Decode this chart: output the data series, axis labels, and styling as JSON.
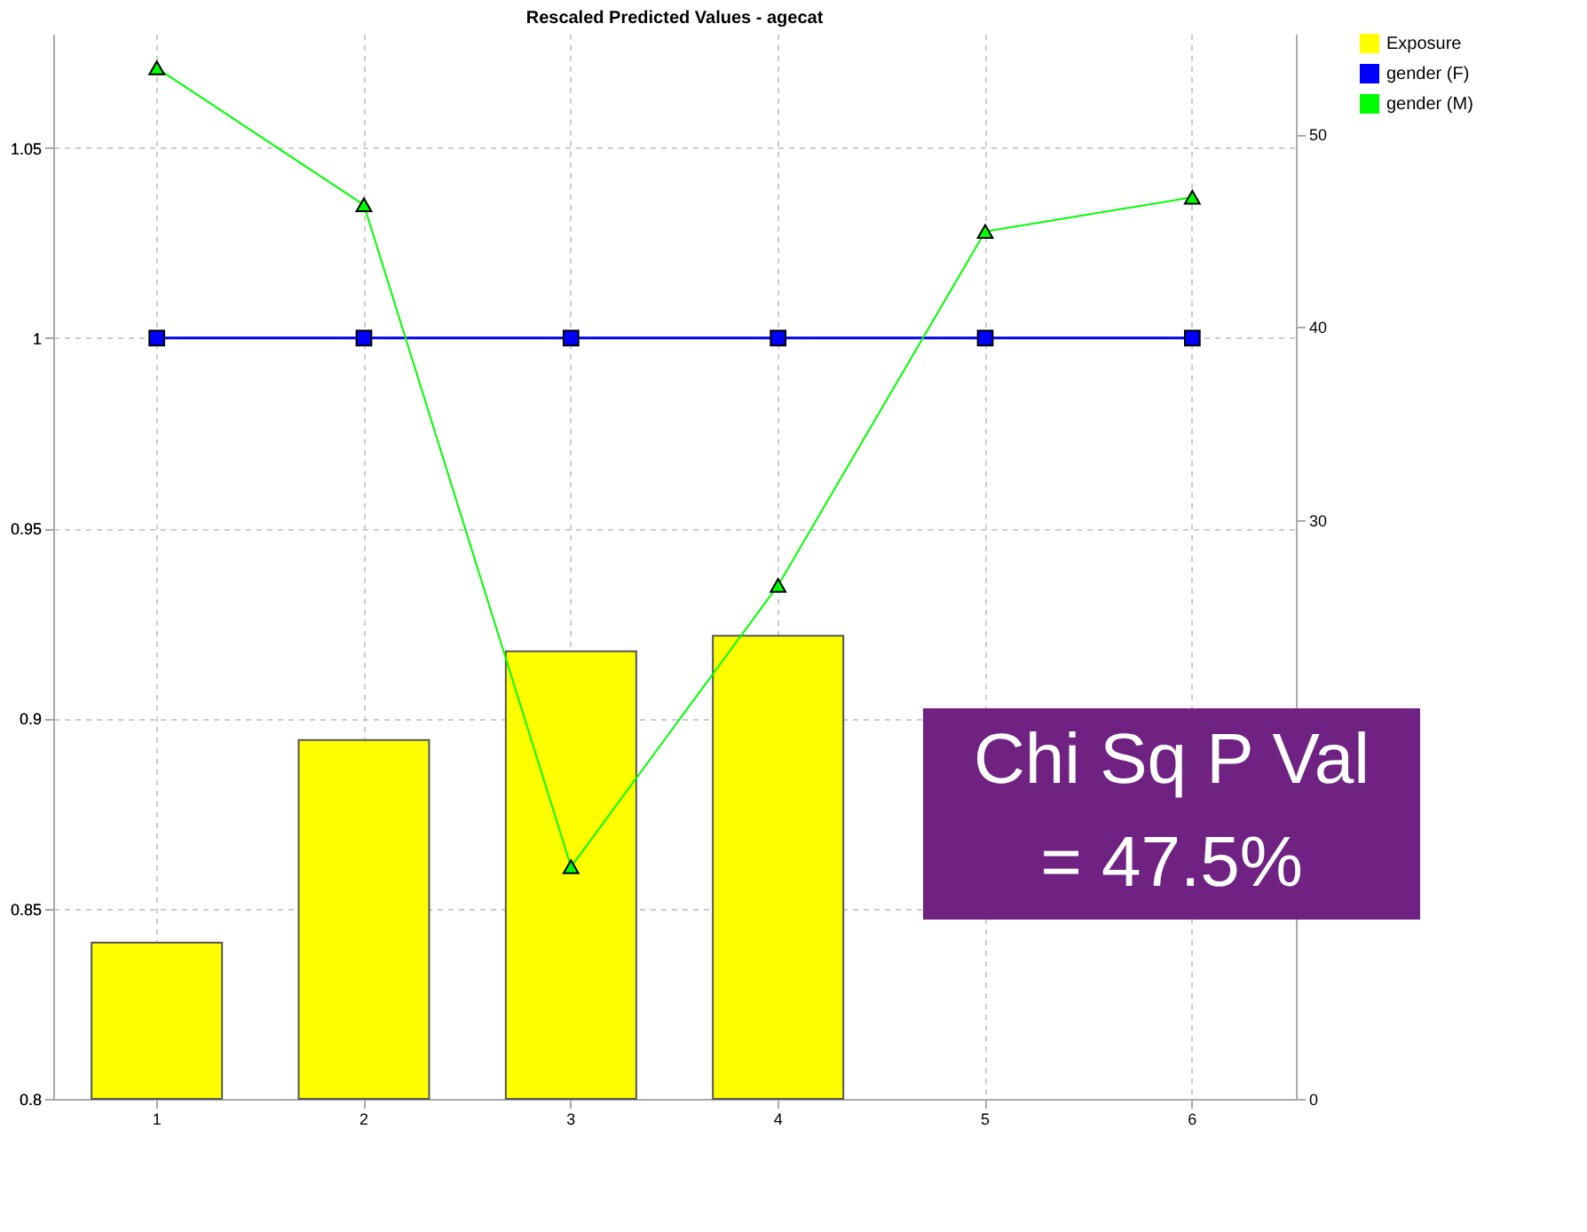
{
  "chart_data": {
    "type": "line",
    "title": "Rescaled Predicted Values - agecat",
    "categories": [
      "1",
      "2",
      "3",
      "4",
      "5",
      "6"
    ],
    "series": [
      {
        "name": "Exposure",
        "type": "bar",
        "axis": "y2",
        "color": "#ffff00",
        "values": [
          8.1,
          18.6,
          23.2,
          24.0,
          null,
          null
        ]
      },
      {
        "name": "gender (F)",
        "color": "#0000ff",
        "marker": "square",
        "values": [
          1,
          1,
          1,
          1,
          1,
          1
        ]
      },
      {
        "name": "gender (M)",
        "color": "#00ff00",
        "marker": "triangle",
        "values": [
          1.071,
          1.035,
          0.861,
          0.935,
          1.028,
          1.037
        ]
      }
    ],
    "ylim": [
      0.8,
      1.08
    ],
    "yticks": [
      0.8,
      0.85,
      0.9,
      0.95,
      1,
      1.05
    ],
    "y2lim": [
      0,
      55.2
    ],
    "y2ticks": [
      0,
      30,
      40,
      50
    ],
    "grid": true,
    "legend": "right",
    "annotations": [
      "Chi Sq P Val",
      "= 47.5%"
    ]
  }
}
